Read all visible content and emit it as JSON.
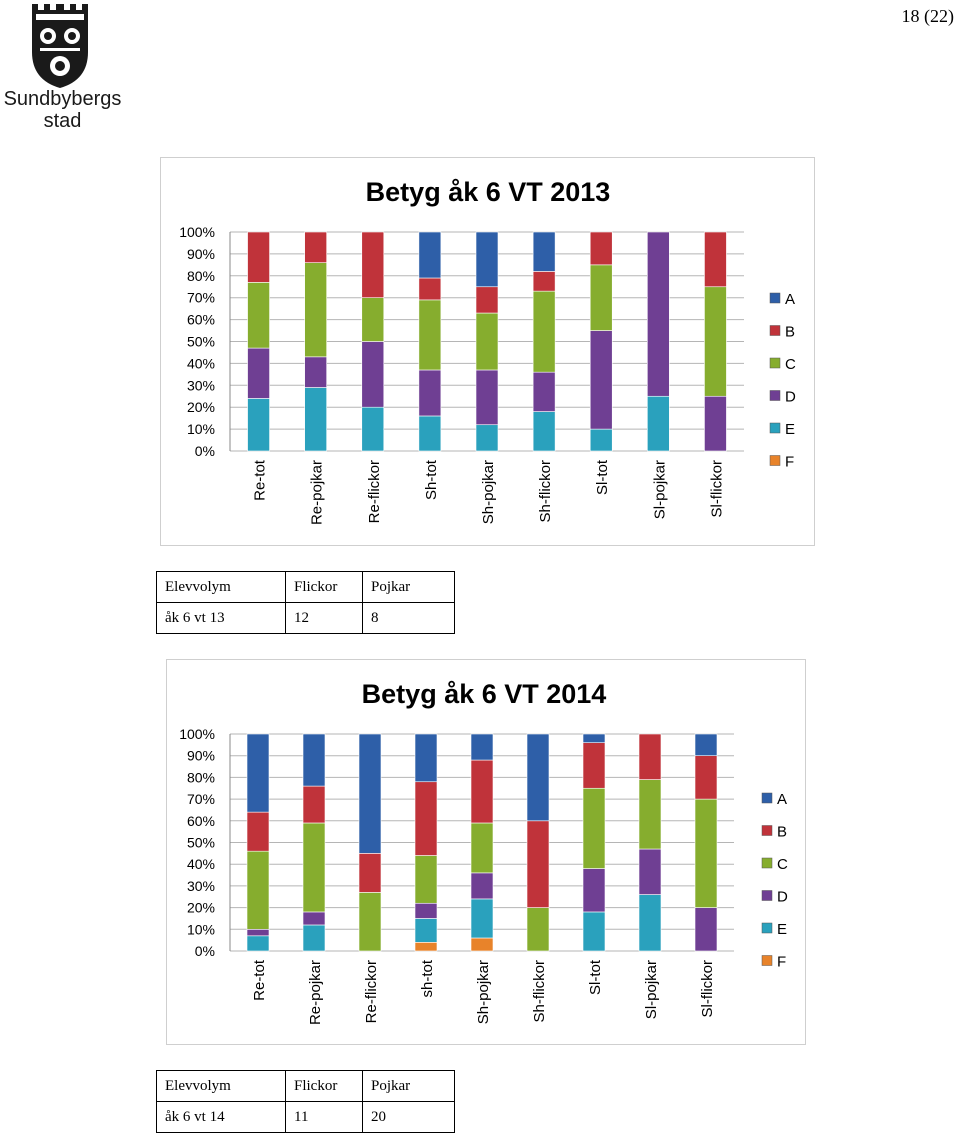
{
  "header": {
    "logo_line1": "Sundbybergs",
    "logo_line2": "stad",
    "page_number": "18 (22)"
  },
  "colors": {
    "A": "#2e5fa8",
    "B": "#c0333a",
    "C": "#86ad2e",
    "D": "#6f3f93",
    "E": "#2aa1bd",
    "F": "#e8832a"
  },
  "chart_data": [
    {
      "type": "bar",
      "stacked": "percent",
      "title": "Betyg åk 6 VT 2013",
      "ylim": [
        0,
        100
      ],
      "yticks": [
        "0%",
        "10%",
        "20%",
        "30%",
        "40%",
        "50%",
        "60%",
        "70%",
        "80%",
        "90%",
        "100%"
      ],
      "grid": true,
      "legend_position": "right",
      "categories": [
        "Re-tot",
        "Re-pojkar",
        "Re-flickor",
        "Sh-tot",
        "Sh-pojkar",
        "Sh-flickor",
        "Sl-tot",
        "Sl-pojkar",
        "Sl-flickor"
      ],
      "series": [
        {
          "name": "F",
          "values": [
            0,
            0,
            0,
            0,
            0,
            0,
            0,
            0,
            0
          ]
        },
        {
          "name": "E",
          "values": [
            24,
            29,
            20,
            16,
            12,
            18,
            10,
            25,
            0
          ]
        },
        {
          "name": "D",
          "values": [
            23,
            14,
            30,
            21,
            25,
            18,
            45,
            75,
            25
          ]
        },
        {
          "name": "C",
          "values": [
            30,
            43,
            20,
            32,
            26,
            37,
            30,
            0,
            50
          ]
        },
        {
          "name": "B",
          "values": [
            23,
            14,
            30,
            10,
            12,
            9,
            15,
            0,
            25
          ]
        },
        {
          "name": "A",
          "values": [
            0,
            0,
            0,
            21,
            25,
            18,
            0,
            0,
            0
          ]
        }
      ]
    },
    {
      "type": "bar",
      "stacked": "percent",
      "title": "Betyg åk 6 VT 2014",
      "ylim": [
        0,
        100
      ],
      "yticks": [
        "0%",
        "10%",
        "20%",
        "30%",
        "40%",
        "50%",
        "60%",
        "70%",
        "80%",
        "90%",
        "100%"
      ],
      "grid": true,
      "legend_position": "right",
      "categories": [
        "Re-tot",
        "Re-pojkar",
        "Re-flickor",
        "sh-tot",
        "Sh-pojkar",
        "Sh-flickor",
        "Sl-tot",
        "Sl-pojkar",
        "Sl-flickor"
      ],
      "series": [
        {
          "name": "F",
          "values": [
            0,
            0,
            0,
            4,
            6,
            0,
            0,
            0,
            0
          ]
        },
        {
          "name": "E",
          "values": [
            7,
            12,
            0,
            11,
            18,
            0,
            18,
            26,
            0
          ]
        },
        {
          "name": "D",
          "values": [
            3,
            6,
            0,
            7,
            12,
            0,
            20,
            21,
            20
          ]
        },
        {
          "name": "C",
          "values": [
            36,
            41,
            27,
            22,
            23,
            20,
            37,
            32,
            50
          ]
        },
        {
          "name": "B",
          "values": [
            18,
            17,
            18,
            34,
            29,
            40,
            21,
            21,
            20
          ]
        },
        {
          "name": "A",
          "values": [
            36,
            24,
            55,
            22,
            12,
            40,
            4,
            0,
            10
          ]
        }
      ]
    }
  ],
  "tables": [
    {
      "header": [
        "Elevvolym",
        "Flickor",
        "Pojkar"
      ],
      "row": [
        "åk 6 vt 13",
        "12",
        "8"
      ]
    },
    {
      "header": [
        "Elevvolym",
        "Flickor",
        "Pojkar"
      ],
      "row": [
        "åk 6 vt 14",
        "11",
        "20"
      ]
    }
  ]
}
